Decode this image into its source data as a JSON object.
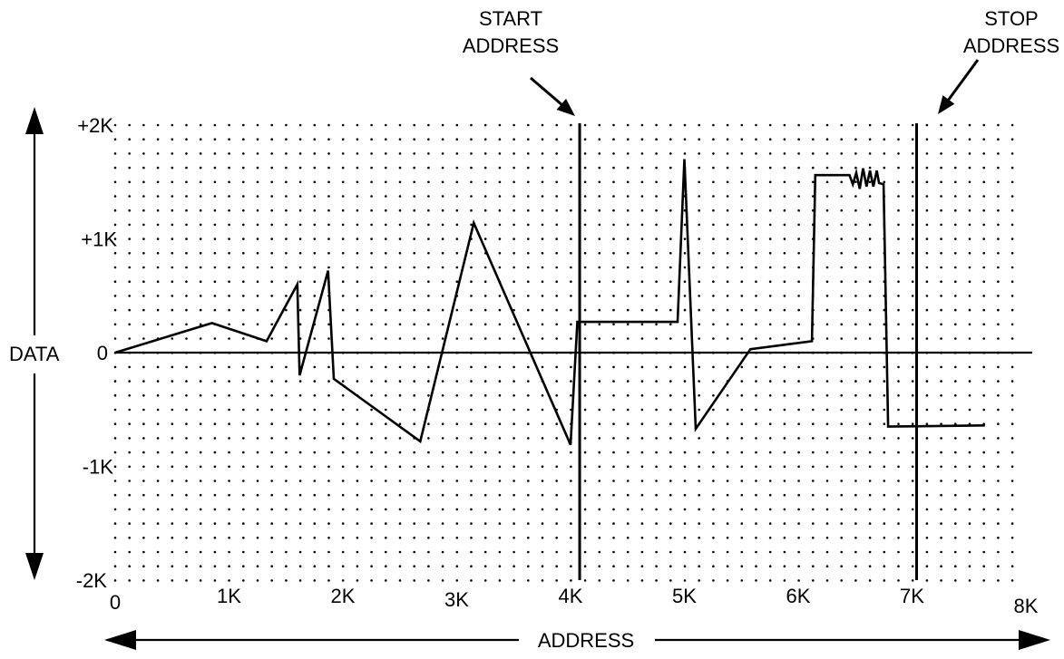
{
  "chart_data": {
    "type": "line",
    "xlabel": "ADDRESS",
    "ylabel": "DATA",
    "xlim": [
      0,
      8000
    ],
    "ylim": [
      -2000,
      2000
    ],
    "x_ticks": [
      {
        "value": 0,
        "label": "0"
      },
      {
        "value": 1000,
        "label": "1K"
      },
      {
        "value": 2000,
        "label": "2K"
      },
      {
        "value": 3000,
        "label": "3K"
      },
      {
        "value": 4000,
        "label": "4K"
      },
      {
        "value": 5000,
        "label": "5K"
      },
      {
        "value": 6000,
        "label": "6K"
      },
      {
        "value": 7000,
        "label": "7K"
      },
      {
        "value": 8000,
        "label": "8K"
      }
    ],
    "y_ticks": [
      {
        "value": 2000,
        "label": "+2K"
      },
      {
        "value": 1000,
        "label": "+1K"
      },
      {
        "value": 0,
        "label": "0"
      },
      {
        "value": -1000,
        "label": "-1K"
      },
      {
        "value": -2000,
        "label": "-2K"
      }
    ],
    "grid": "dotted",
    "series": [
      {
        "points": [
          [
            0,
            0
          ],
          [
            850,
            260
          ],
          [
            1330,
            100
          ],
          [
            1600,
            600
          ],
          [
            1620,
            -200
          ],
          [
            1870,
            720
          ],
          [
            1920,
            -230
          ],
          [
            2680,
            -780
          ],
          [
            3150,
            1140
          ],
          [
            4000,
            -810
          ],
          [
            4060,
            270
          ],
          [
            4940,
            270
          ],
          [
            5000,
            1700
          ],
          [
            5100,
            -670
          ],
          [
            5580,
            30
          ],
          [
            6120,
            100
          ],
          [
            6150,
            1560
          ],
          [
            6450,
            1560
          ],
          [
            6480,
            1480
          ],
          [
            6510,
            1580
          ],
          [
            6540,
            1440
          ],
          [
            6570,
            1620
          ],
          [
            6600,
            1460
          ],
          [
            6630,
            1600
          ],
          [
            6660,
            1460
          ],
          [
            6690,
            1600
          ],
          [
            6710,
            1490
          ],
          [
            6750,
            1480
          ],
          [
            6790,
            -650
          ],
          [
            7640,
            -640
          ]
        ]
      }
    ],
    "markers": [
      {
        "x": 4080,
        "label_line1": "START",
        "label_line2": "ADDRESS"
      },
      {
        "x": 7040,
        "label_line1": "STOP",
        "label_line2": "ADDRESS"
      }
    ]
  }
}
